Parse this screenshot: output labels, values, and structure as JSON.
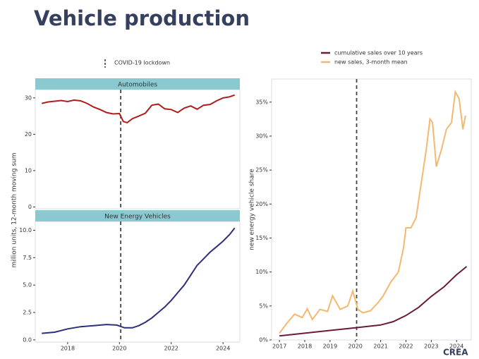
{
  "title": "Vehicle production",
  "annotation": "COVID-19 lockdown",
  "logo": "CREA",
  "chart_data": [
    {
      "type": "line",
      "title": "Automobiles",
      "ylabel": "million units, 12-month moving sum",
      "color": "#b01c1c",
      "x": [
        2017.0,
        2017.25,
        2017.5,
        2017.75,
        2018.0,
        2018.25,
        2018.5,
        2018.75,
        2019.0,
        2019.25,
        2019.5,
        2019.75,
        2020.0,
        2020.15,
        2020.3,
        2020.5,
        2020.75,
        2021.0,
        2021.25,
        2021.5,
        2021.75,
        2022.0,
        2022.25,
        2022.5,
        2022.75,
        2023.0,
        2023.25,
        2023.5,
        2023.75,
        2024.0,
        2024.25,
        2024.45
      ],
      "values": [
        28.5,
        28.9,
        29.1,
        29.3,
        29.0,
        29.4,
        29.2,
        28.5,
        27.5,
        26.8,
        26.0,
        25.6,
        25.7,
        23.5,
        23.2,
        24.3,
        25.0,
        25.8,
        28.0,
        28.3,
        27.0,
        26.8,
        26.0,
        27.2,
        27.8,
        26.9,
        28.0,
        28.2,
        29.2,
        30.0,
        30.3,
        30.8
      ],
      "xlim": [
        2016.75,
        2024.65
      ],
      "ylim": [
        -0.5,
        32.3
      ],
      "yticks": [
        0,
        10,
        20,
        30
      ],
      "vline": 2020.05
    },
    {
      "type": "line",
      "title": "New Energy Vehicles",
      "color": "#2e2f7a",
      "x": [
        2017.0,
        2017.5,
        2018.0,
        2018.5,
        2019.0,
        2019.5,
        2019.9,
        2020.2,
        2020.5,
        2020.75,
        2021.0,
        2021.25,
        2021.5,
        2021.75,
        2022.0,
        2022.25,
        2022.5,
        2022.75,
        2023.0,
        2023.25,
        2023.5,
        2023.75,
        2024.0,
        2024.25,
        2024.45
      ],
      "values": [
        0.6,
        0.7,
        1.0,
        1.2,
        1.3,
        1.4,
        1.35,
        1.1,
        1.1,
        1.3,
        1.6,
        2.0,
        2.5,
        3.0,
        3.6,
        4.3,
        5.0,
        5.9,
        6.8,
        7.4,
        8.0,
        8.5,
        9.0,
        9.6,
        10.2
      ],
      "xlim": [
        2016.75,
        2024.65
      ],
      "ylim": [
        -0.2,
        10.8
      ],
      "yticks": [
        {
          "value": 0,
          "label": "0.0"
        },
        2.5,
        {
          "value": 5,
          "label": "5.0"
        },
        7.5,
        {
          "value": 10,
          "label": "10.0"
        }
      ],
      "xticks": [
        2018,
        2020,
        2022,
        2024
      ],
      "vline": 2020.05
    },
    {
      "type": "line",
      "ylabel": "new energy vehicle share",
      "series": [
        {
          "name": "cumulative sales over 10 years",
          "color": "#6b1a3e",
          "x": [
            2017.0,
            2018.0,
            2019.0,
            2020.0,
            2021.0,
            2021.5,
            2022.0,
            2022.5,
            2023.0,
            2023.5,
            2024.0,
            2024.4
          ],
          "values": [
            0.6,
            1.0,
            1.4,
            1.8,
            2.2,
            2.7,
            3.6,
            4.8,
            6.4,
            7.8,
            9.6,
            10.8
          ]
        },
        {
          "name": "new sales, 3-month mean",
          "color": "#f5b870",
          "x": [
            2017.0,
            2017.3,
            2017.6,
            2017.9,
            2018.1,
            2018.3,
            2018.6,
            2018.9,
            2019.1,
            2019.4,
            2019.7,
            2019.9,
            2020.1,
            2020.3,
            2020.6,
            2020.9,
            2021.1,
            2021.4,
            2021.7,
            2021.9,
            2022.0,
            2022.2,
            2022.4,
            2022.6,
            2022.8,
            2022.95,
            2023.05,
            2023.2,
            2023.4,
            2023.6,
            2023.8,
            2023.95,
            2024.1,
            2024.25,
            2024.35
          ],
          "values": [
            1.0,
            2.5,
            3.8,
            3.3,
            4.6,
            3.0,
            4.5,
            4.2,
            6.5,
            4.5,
            5.0,
            7.2,
            4.5,
            4.0,
            4.3,
            5.5,
            6.5,
            8.5,
            10.0,
            13.5,
            16.5,
            16.5,
            18.0,
            23.0,
            28.0,
            32.5,
            32.0,
            25.5,
            28.0,
            31.0,
            32.0,
            36.5,
            35.5,
            31.0,
            33.0
          ]
        }
      ],
      "xlim": [
        2016.69,
        2024.58
      ],
      "ylim": [
        0,
        38.4
      ],
      "yticks": [
        {
          "value": 0,
          "label": "0%"
        },
        {
          "value": 5,
          "label": "5%"
        },
        {
          "value": 10,
          "label": "10%"
        },
        {
          "value": 15,
          "label": "15%"
        },
        {
          "value": 20,
          "label": "20%"
        },
        {
          "value": 25,
          "label": "25%"
        },
        {
          "value": 30,
          "label": "30%"
        },
        {
          "value": 35,
          "label": "35%"
        }
      ],
      "xticks": [
        2017,
        2018,
        2019,
        2020,
        2021,
        2022,
        2023,
        2024
      ],
      "vline": 2020.05,
      "legend": "top"
    }
  ]
}
